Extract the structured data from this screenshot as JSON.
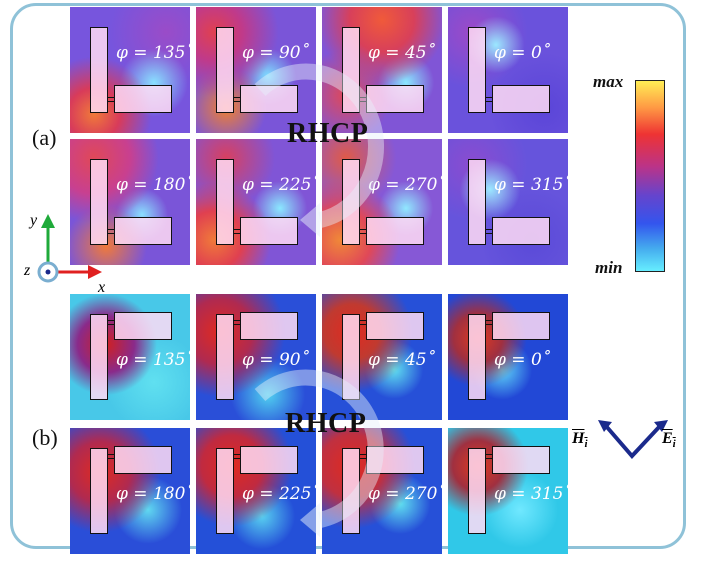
{
  "panel_labels": {
    "a": "(a)",
    "b": "(b)"
  },
  "rhcp_label": "RHCP",
  "colorbar": {
    "max_label": "max",
    "min_label": "min"
  },
  "axes": {
    "x": "x",
    "y": "y",
    "z": "z"
  },
  "field_vectors": {
    "h": "H",
    "h_sub": "i",
    "e": "E",
    "e_sub": "i"
  },
  "panel_a": [
    {
      "phi": "φ = 135˚"
    },
    {
      "phi": "φ = 90˚"
    },
    {
      "phi": "φ = 45˚"
    },
    {
      "phi": "φ = 0˚"
    },
    {
      "phi": "φ = 180˚"
    },
    {
      "phi": "φ = 225˚"
    },
    {
      "phi": "φ = 270˚"
    },
    {
      "phi": "φ = 315˚"
    }
  ],
  "panel_b": [
    {
      "phi": "φ = 135˚"
    },
    {
      "phi": "φ = 90˚"
    },
    {
      "phi": "φ = 45˚"
    },
    {
      "phi": "φ = 0˚"
    },
    {
      "phi": "φ = 180˚"
    },
    {
      "phi": "φ = 225˚"
    },
    {
      "phi": "φ = 270˚"
    },
    {
      "phi": "φ = 315˚"
    }
  ],
  "colors": {
    "frame": "#8fc2d8",
    "a_bg": "#7d5fd9",
    "b_bg": "#2a6fe0",
    "arrow_dark": "#1b2a8c",
    "axis_y": "#1faa3a",
    "axis_x": "#e02020"
  }
}
